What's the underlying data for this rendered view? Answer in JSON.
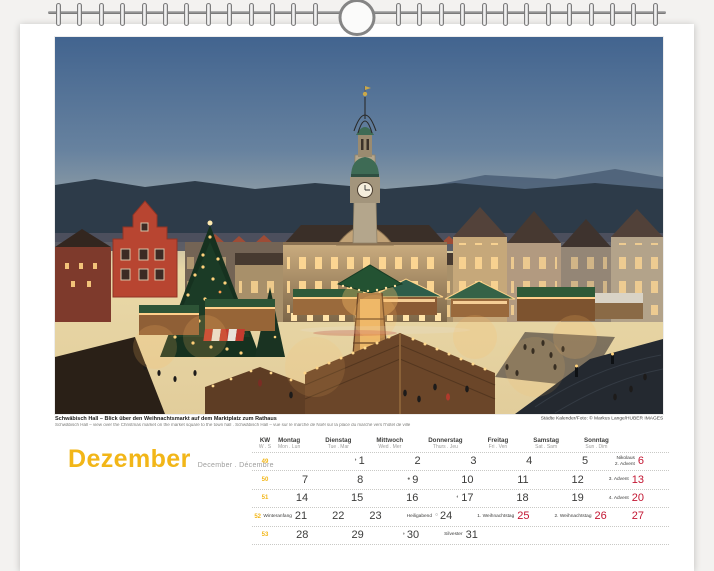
{
  "colors": {
    "accent_yellow": "#F2B618",
    "holiday_red": "#C31632",
    "text_dark": "#3C3C3B",
    "text_gray": "#9D9D9C"
  },
  "photo": {
    "caption_title": "Schwäbisch Hall – Blick über den Weihnachtsmarkt auf dem Marktplatz zum Rathaus",
    "caption_translations": "Schwäbisch Hall – view over the Christmas market on the market square to the town hall . Schwäbisch Hall – vue sur le marché de Noël sur la place du marché vers l'hôtel de ville",
    "credit": "Städte Kalender/Foto: © Markus Lange/HUBER IMAGES"
  },
  "month": {
    "name": "Dezember",
    "subtitle": "December . Décembre"
  },
  "calendar": {
    "week_col": {
      "title": "KW",
      "subtitle": "W . S"
    },
    "day_headers": [
      {
        "de": "Montag",
        "intl": "Mon . Lun"
      },
      {
        "de": "Dienstag",
        "intl": "Tue . Mar"
      },
      {
        "de": "Mittwoch",
        "intl": "Wed . Mer"
      },
      {
        "de": "Donnerstag",
        "intl": "Thurs . Jeu"
      },
      {
        "de": "Freitag",
        "intl": "Fri . Ven"
      },
      {
        "de": "Samstag",
        "intl": "Sat . Sam"
      },
      {
        "de": "Sonntag",
        "intl": "Sun . Dim"
      }
    ],
    "weeks": [
      {
        "kw": "49",
        "days": [
          {
            "num": ""
          },
          {
            "num": "1",
            "marker": "◑"
          },
          {
            "num": "2"
          },
          {
            "num": "3"
          },
          {
            "num": "4"
          },
          {
            "num": "5"
          },
          {
            "num": "6",
            "red": true,
            "labels": [
              "Nikolaus",
              "2. Advent"
            ]
          }
        ]
      },
      {
        "kw": "50",
        "days": [
          {
            "num": "7"
          },
          {
            "num": "8"
          },
          {
            "num": "9",
            "marker": "●"
          },
          {
            "num": "10"
          },
          {
            "num": "11"
          },
          {
            "num": "12"
          },
          {
            "num": "13",
            "red": true,
            "labels": [
              "3. Advent"
            ]
          }
        ]
      },
      {
        "kw": "51",
        "days": [
          {
            "num": "14"
          },
          {
            "num": "15"
          },
          {
            "num": "16"
          },
          {
            "num": "17",
            "marker": "◐"
          },
          {
            "num": "18"
          },
          {
            "num": "19"
          },
          {
            "num": "20",
            "red": true,
            "labels": [
              "4. Advent"
            ]
          }
        ]
      },
      {
        "kw": "52",
        "days": [
          {
            "num": "21",
            "labels": [
              "Winteranfang"
            ]
          },
          {
            "num": "22"
          },
          {
            "num": "23"
          },
          {
            "num": "24",
            "marker": "○",
            "labels": [
              "Heiligabend"
            ]
          },
          {
            "num": "25",
            "red": true,
            "labels": [
              "1. Weihnachtstag"
            ]
          },
          {
            "num": "26",
            "red": true,
            "labels": [
              "2. Weihnachtstag"
            ]
          },
          {
            "num": "27",
            "red": true
          }
        ]
      },
      {
        "kw": "53",
        "days": [
          {
            "num": "28"
          },
          {
            "num": "29"
          },
          {
            "num": "30",
            "marker": "◑"
          },
          {
            "num": "31",
            "labels": [
              "Silvester"
            ]
          },
          {
            "num": ""
          },
          {
            "num": ""
          },
          {
            "num": ""
          }
        ]
      }
    ]
  }
}
